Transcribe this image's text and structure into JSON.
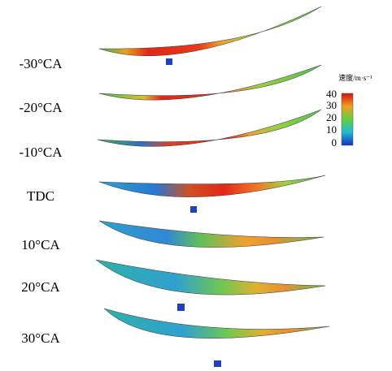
{
  "panels": [
    {
      "label": "-30°CA"
    },
    {
      "label": "-20°CA"
    },
    {
      "label": "-10°CA"
    },
    {
      "label": "TDC"
    },
    {
      "label": "10°CA"
    },
    {
      "label": "20°CA"
    },
    {
      "label": "30°CA"
    }
  ],
  "colorbar": {
    "title": "速度/m·s⁻¹",
    "ticks": [
      "40",
      "30",
      "20",
      "10",
      "0"
    ]
  }
}
